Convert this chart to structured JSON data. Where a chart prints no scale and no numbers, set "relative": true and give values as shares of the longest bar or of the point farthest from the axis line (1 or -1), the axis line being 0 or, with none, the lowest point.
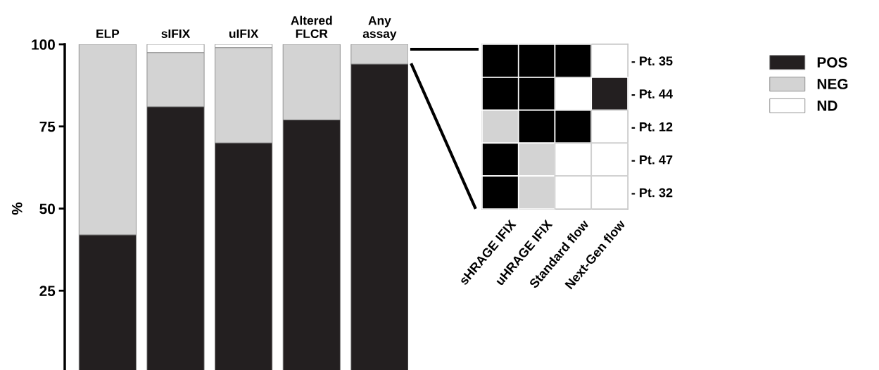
{
  "chart_data": [
    {
      "type": "bar",
      "stacked": true,
      "categories": [
        "ELP",
        "sIFIX",
        "uIFIX",
        "Altered\nFLCR",
        "Any\nassay"
      ],
      "ylabel": "%",
      "ylim": [
        0,
        100
      ],
      "yticks": [
        25,
        50,
        75,
        100
      ],
      "legend": "right",
      "grid": false,
      "series": [
        {
          "name": "POS",
          "color": "#231f20",
          "values": [
            42,
            81,
            70,
            77,
            94
          ]
        },
        {
          "name": "NEG",
          "color": "#d3d3d3",
          "values": [
            58,
            16.5,
            29,
            23,
            6
          ]
        },
        {
          "name": "ND",
          "color": "#ffffff",
          "values": [
            0,
            2.5,
            1,
            0,
            0
          ]
        }
      ]
    },
    {
      "type": "bar",
      "orientation": "horizontal",
      "stacked": true,
      "relative": true,
      "categories": [
        "- Pt. 35",
        "- Pt. 44",
        "- Pt. 12",
        "- Pt. 47",
        "- Pt. 32"
      ],
      "series": [
        {
          "name": "sHRAGE IFIX",
          "colors": [
            "#000000",
            "#000000",
            "#d3d3d3",
            "#000000",
            "#000000"
          ],
          "values": [
            0.25,
            0.25,
            0.25,
            0.25,
            0.25
          ]
        },
        {
          "name": "uHRAGE IFIX",
          "colors": [
            "#000000",
            "#000000",
            "#000000",
            "#d3d3d3",
            "#d3d3d3"
          ],
          "values": [
            0.25,
            0.25,
            0.25,
            0.25,
            0.25
          ]
        },
        {
          "name": "Standard flow",
          "colors": [
            "#000000",
            "#ffffff",
            "#000000",
            "#ffffff",
            "#ffffff"
          ],
          "values": [
            0.25,
            0.25,
            0.25,
            0.25,
            0.25
          ]
        },
        {
          "name": "Next-Gen flow",
          "colors": [
            "#ffffff",
            "#231f20",
            "#ffffff",
            "#ffffff",
            "#ffffff"
          ],
          "values": [
            0.25,
            0.25,
            0.25,
            0.25,
            0.25
          ]
        }
      ]
    }
  ]
}
